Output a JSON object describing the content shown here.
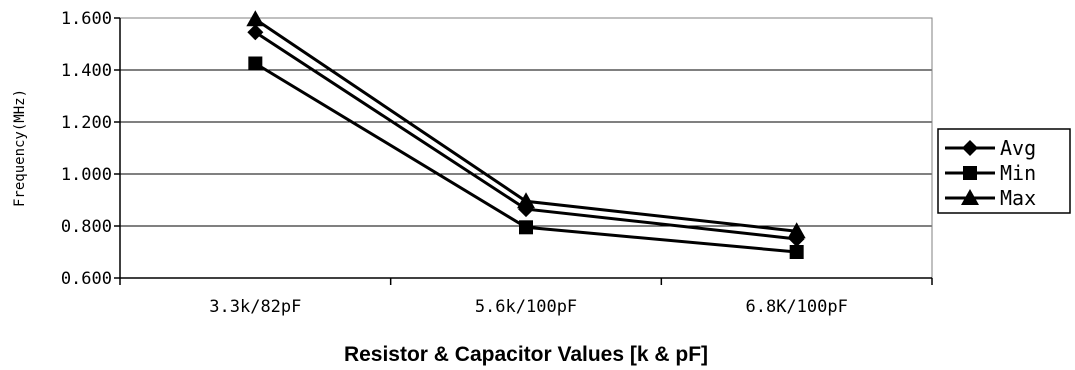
{
  "chart_data": {
    "type": "line",
    "categories": [
      "3.3k/82pF",
      "5.6k/100pF",
      "6.8K/100pF"
    ],
    "series": [
      {
        "name": "Avg",
        "values": [
          1.545,
          0.865,
          0.75
        ],
        "marker": "diamond"
      },
      {
        "name": "Min",
        "values": [
          1.425,
          0.795,
          0.7
        ],
        "marker": "square"
      },
      {
        "name": "Max",
        "values": [
          1.595,
          0.895,
          0.78
        ],
        "marker": "triangle"
      }
    ],
    "yticks": [
      "0.600",
      "0.800",
      "1.000",
      "1.200",
      "1.400",
      "1.600"
    ],
    "ylim": [
      0.6,
      1.6
    ],
    "ylabel": "Frequency(MHz)",
    "xlabel": "Resistor & Capacitor Values [k & pF]",
    "grid": "horizontal",
    "legend_position": "right",
    "line_color": "#000000"
  }
}
